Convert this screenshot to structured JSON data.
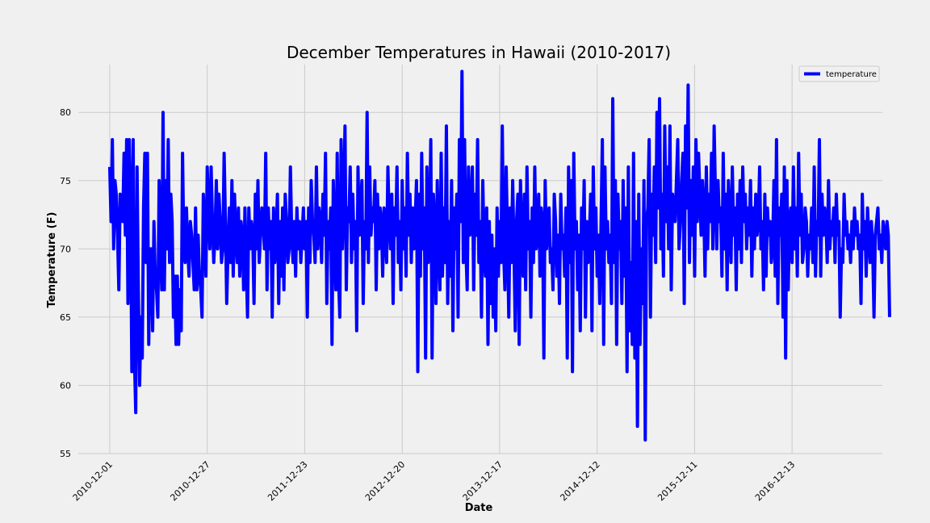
{
  "chart_data": {
    "type": "line",
    "title": "December Temperatures in Hawaii (2010-2017)",
    "xlabel": "Date",
    "ylabel": "Temperature (F)",
    "ylim": [
      55,
      83.5
    ],
    "y_ticks": [
      55,
      60,
      65,
      70,
      75,
      80
    ],
    "x_ticks": [
      "2010-12-01",
      "2010-12-27",
      "2011-12-23",
      "2012-12-20",
      "2013-12-17",
      "2014-12-12",
      "2015-12-11",
      "2016-12-13"
    ],
    "x_tick_index": [
      0,
      217,
      434,
      651,
      868,
      1085,
      1302,
      1519
    ],
    "x_range": [
      -70,
      1720
    ],
    "grid": true,
    "legend": "upper right",
    "series": [
      {
        "name": "temperature",
        "color": "#0000ff",
        "values": [
          76,
          72,
          78,
          70,
          75,
          74,
          71,
          67,
          74,
          73,
          72,
          77,
          71,
          78,
          66,
          78,
          73,
          61,
          78,
          62,
          58,
          76,
          67,
          60,
          65,
          62,
          73,
          77,
          69,
          77,
          63,
          70,
          70,
          64,
          72,
          68,
          67,
          65,
          75,
          70,
          67,
          80,
          67,
          75,
          70,
          78,
          69,
          74,
          72,
          65,
          68,
          63,
          68,
          63,
          67,
          64,
          77,
          70,
          69,
          73,
          70,
          68,
          72,
          71,
          69,
          67,
          73,
          67,
          71,
          68,
          67,
          65,
          74,
          72,
          68,
          76,
          73,
          70,
          76,
          72,
          69,
          71,
          75,
          70,
          74,
          72,
          69,
          70,
          77,
          72,
          66,
          70,
          73,
          69,
          75,
          68,
          74,
          71,
          69,
          73,
          68,
          72,
          71,
          67,
          73,
          69,
          65,
          73,
          70,
          72,
          71,
          66,
          74,
          70,
          75,
          69,
          71,
          73,
          72,
          70,
          77,
          67,
          73,
          70,
          72,
          65,
          73,
          69,
          71,
          74,
          66,
          72,
          68,
          73,
          67,
          74,
          72,
          69,
          70,
          76,
          71,
          69,
          72,
          68,
          73,
          70,
          72,
          69,
          71,
          73,
          70,
          72,
          65,
          73,
          69,
          75,
          72,
          71,
          69,
          76,
          70,
          73,
          72,
          69,
          74,
          71,
          77,
          66,
          72,
          70,
          73,
          63,
          75,
          71,
          67,
          77,
          68,
          65,
          78,
          70,
          74,
          79,
          67,
          73,
          72,
          76,
          69,
          74,
          70,
          72,
          64,
          76,
          71,
          73,
          75,
          66,
          72,
          70,
          80,
          69,
          76,
          71,
          73,
          72,
          75,
          67,
          74,
          70,
          73,
          72,
          68,
          73,
          71,
          69,
          76,
          72,
          70,
          74,
          66,
          73,
          71,
          76,
          69,
          72,
          67,
          75,
          70,
          73,
          68,
          77,
          71,
          74,
          69,
          73,
          70,
          72,
          75,
          61,
          74,
          68,
          77,
          70,
          73,
          62,
          76,
          69,
          71,
          78,
          62,
          74,
          72,
          66,
          75,
          70,
          67,
          77,
          68,
          73,
          69,
          79,
          66,
          72,
          68,
          75,
          64,
          73,
          70,
          74,
          65,
          78,
          72,
          83,
          69,
          78,
          70,
          67,
          76,
          71,
          73,
          76,
          67,
          74,
          71,
          78,
          69,
          72,
          65,
          75,
          70,
          68,
          73,
          63,
          72,
          66,
          71,
          65,
          70,
          64,
          73,
          68,
          72,
          69,
          79,
          70,
          67,
          76,
          71,
          65,
          73,
          69,
          75,
          70,
          64,
          72,
          74,
          63,
          75,
          71,
          68,
          74,
          67,
          76,
          70,
          72,
          65,
          73,
          69,
          76,
          70,
          71,
          74,
          68,
          73,
          72,
          62,
          75,
          70,
          71,
          73,
          69,
          70,
          67,
          74,
          72,
          68,
          71,
          66,
          74,
          70,
          71,
          68,
          73,
          62,
          76,
          69,
          75,
          61,
          77,
          70,
          72,
          67,
          71,
          64,
          73,
          70,
          75,
          65,
          72,
          69,
          71,
          74,
          64,
          76,
          70,
          73,
          68,
          71,
          66,
          72,
          78,
          63,
          76,
          70,
          72,
          69,
          71,
          66,
          81,
          69,
          75,
          63,
          74,
          70,
          72,
          66,
          75,
          68,
          73,
          61,
          76,
          64,
          69,
          63,
          77,
          62,
          72,
          57,
          74,
          63,
          70,
          66,
          75,
          56,
          72,
          73,
          78,
          65,
          74,
          71,
          76,
          69,
          80,
          73,
          81,
          70,
          74,
          68,
          79,
          72,
          76,
          70,
          79,
          67,
          74,
          73,
          72,
          75,
          78,
          70,
          72,
          75,
          77,
          66,
          79,
          73,
          82,
          69,
          75,
          71,
          76,
          68,
          78,
          72,
          77,
          74,
          71,
          75,
          73,
          68,
          76,
          70,
          74,
          72,
          77,
          70,
          79,
          74,
          70,
          75,
          72,
          73,
          68,
          77,
          70,
          74,
          67,
          75,
          72,
          69,
          76,
          71,
          73,
          67,
          74,
          70,
          75,
          69,
          76,
          72,
          74,
          70,
          73,
          71,
          75,
          68,
          73,
          70,
          74,
          71,
          72,
          76,
          70,
          72,
          67,
          74,
          68,
          73,
          71,
          72,
          69,
          70,
          75,
          68,
          78,
          66,
          73,
          71,
          74,
          65,
          76,
          62,
          75,
          67,
          72,
          73,
          69,
          76,
          70,
          73,
          68,
          77,
          71,
          74,
          69,
          70,
          73,
          72,
          68,
          71,
          70,
          73,
          69,
          76,
          68,
          72,
          71,
          78,
          68,
          74,
          71,
          73,
          72,
          69,
          75,
          70,
          72,
          71,
          73,
          69,
          74,
          71,
          72,
          65,
          70,
          69,
          74,
          71,
          72,
          70,
          71,
          69,
          72,
          70,
          73,
          71,
          72,
          70,
          71,
          66,
          74,
          70,
          72,
          68,
          73,
          71,
          69,
          72,
          70,
          65,
          71,
          72,
          73,
          70,
          71,
          69,
          72,
          71,
          70,
          72,
          71,
          65
        ]
      }
    ]
  }
}
